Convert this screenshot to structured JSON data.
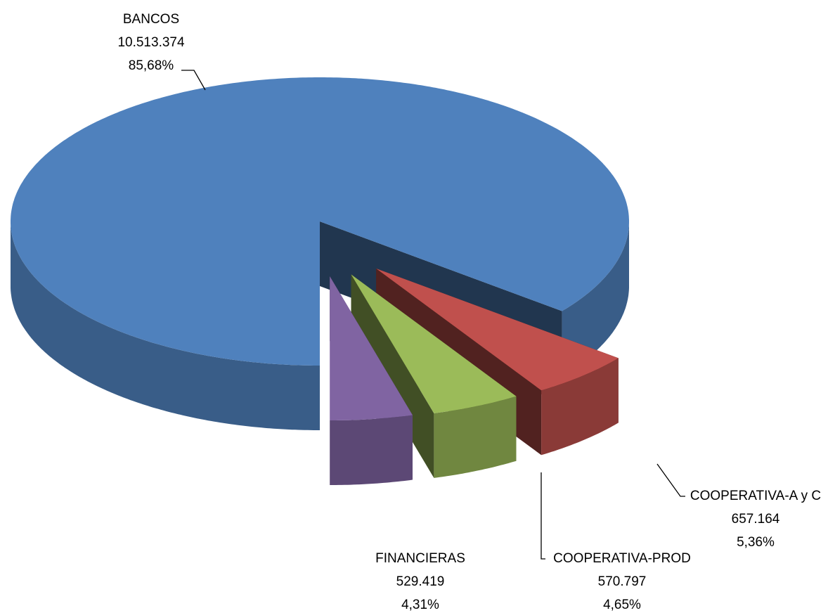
{
  "chart_data": {
    "type": "pie",
    "categories": [
      "BANCOS",
      "COOPERATIVA-A y C",
      "COOPERATIVA-PROD",
      "FINANCIERAS"
    ],
    "values": [
      10513374,
      657164,
      570797,
      529419
    ],
    "value_labels": [
      "10.513.374",
      "657.164",
      "570.797",
      "529.419"
    ],
    "percents": [
      85.68,
      5.36,
      4.65,
      4.31
    ],
    "percent_labels": [
      "85,68%",
      "5,36%",
      "4,65%",
      "4,31%"
    ],
    "colors": [
      "#4f81bd",
      "#c0504d",
      "#9bbb59",
      "#8064a2"
    ]
  }
}
